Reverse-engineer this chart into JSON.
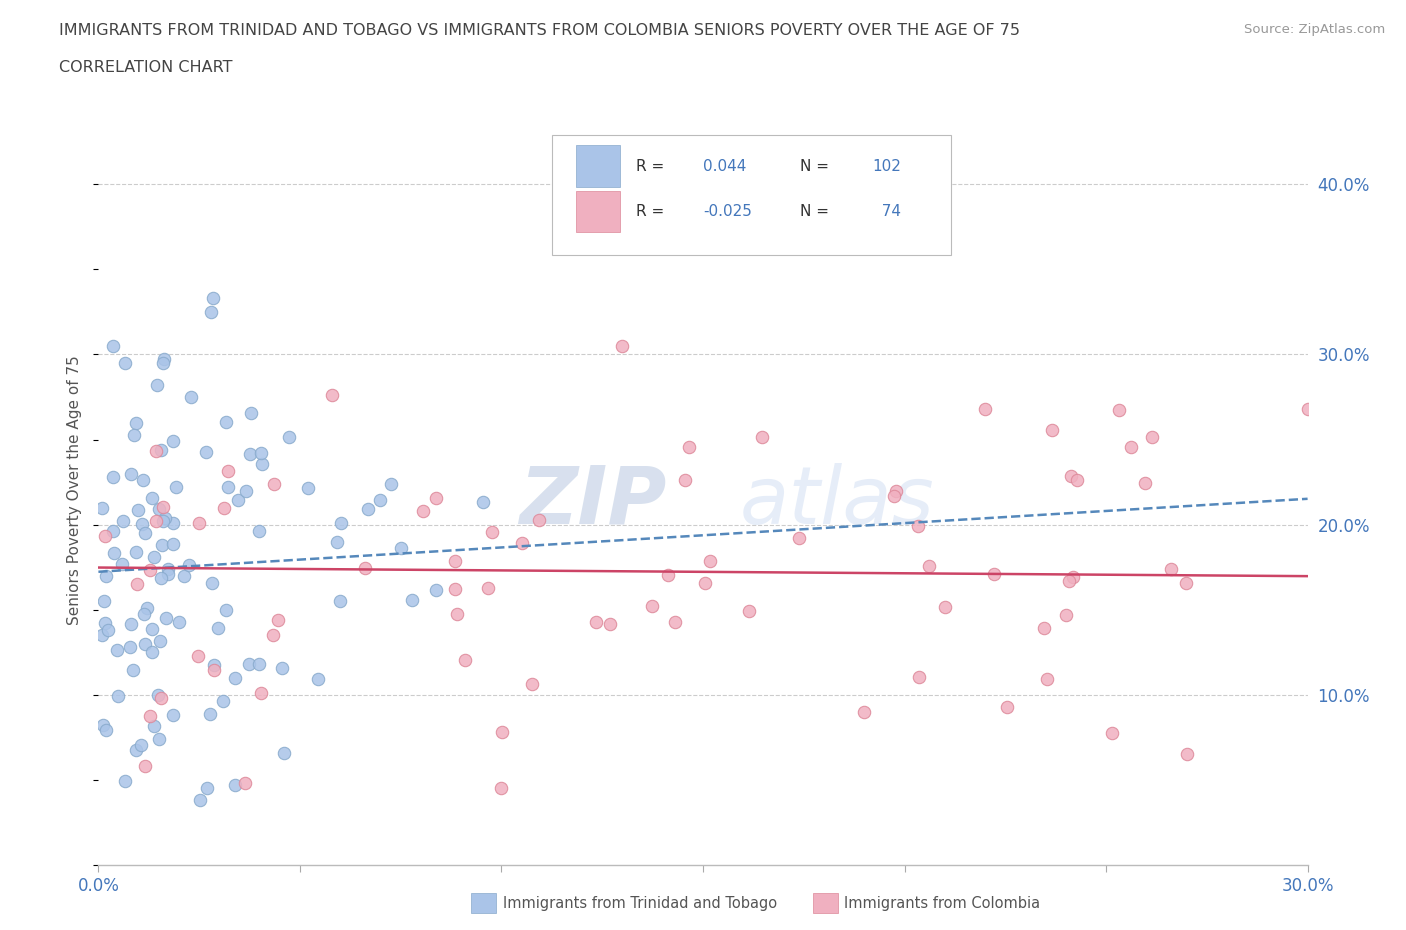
{
  "title_line1": "IMMIGRANTS FROM TRINIDAD AND TOBAGO VS IMMIGRANTS FROM COLOMBIA SENIORS POVERTY OVER THE AGE OF 75",
  "title_line2": "CORRELATION CHART",
  "source_text": "Source: ZipAtlas.com",
  "ylabel": "Seniors Poverty Over the Age of 75",
  "xlim": [
    0.0,
    0.3
  ],
  "ylim": [
    0.0,
    0.44
  ],
  "xtick_positions": [
    0.0,
    0.05,
    0.1,
    0.15,
    0.2,
    0.25,
    0.3
  ],
  "xtick_labels_show": {
    "0.0": "0.0%",
    "0.3": "30.0%"
  },
  "yticks_right": [
    0.1,
    0.2,
    0.3,
    0.4
  ],
  "ytick_labels": [
    "10.0%",
    "20.0%",
    "30.0%",
    "40.0%"
  ],
  "series1_label": "Immigrants from Trinidad and Tobago",
  "series1_color": "#aac4e8",
  "series1_edge_color": "#88aacc",
  "series1_R": 0.044,
  "series1_N": 102,
  "series1_line_color": "#5588bb",
  "series1_line_style": "--",
  "series2_label": "Immigrants from Colombia",
  "series2_color": "#f0b0c0",
  "series2_edge_color": "#dd8899",
  "series2_R": -0.025,
  "series2_N": 74,
  "series2_line_color": "#cc4466",
  "series2_line_style": "-",
  "watermark_top": "ZIP",
  "watermark_bottom": "atlas",
  "watermark_color": "#ccd8ee",
  "legend_R_color": "#4477bb",
  "legend_N_color": "#4477bb",
  "title_color": "#444444",
  "axis_color": "#4477bb",
  "background_color": "#ffffff",
  "grid_color": "#cccccc",
  "source_color": "#999999"
}
